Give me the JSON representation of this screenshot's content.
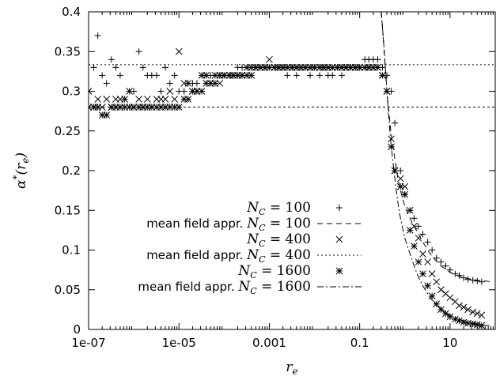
{
  "chart_data": {
    "type": "scatter",
    "title": "",
    "xlabel": "r_e",
    "ylabel": "α*(r_e)",
    "x_scale": "log",
    "xlim": [
      1e-07,
      100
    ],
    "ylim": [
      0,
      0.4
    ],
    "grid": false,
    "legend_position": "lower-left",
    "x_tick_labels": [
      "1e-07",
      "1e-05",
      "0.001",
      "0.1",
      "10"
    ],
    "x_tick_values": [
      1e-07,
      1e-05,
      0.001,
      0.1,
      10
    ],
    "y_tick_labels": [
      "0",
      "0.05",
      "0.1",
      "0.15",
      "0.2",
      "0.25",
      "0.3",
      "0.35",
      "0.4"
    ],
    "y_tick_values": [
      0,
      0.05,
      0.1,
      0.15,
      0.2,
      0.25,
      0.3,
      0.35,
      0.4
    ],
    "series": [
      {
        "name": "N_C = 100",
        "marker": "plus",
        "x": [
          1.3e-07,
          1.6e-07,
          2e-07,
          2.5e-07,
          3.2e-07,
          4e-07,
          5e-07,
          6.3e-07,
          8e-07,
          1e-06,
          1.3e-06,
          1.6e-06,
          2e-06,
          2.5e-06,
          3.2e-06,
          4e-06,
          5e-06,
          6.3e-06,
          8e-06,
          1e-05,
          1.3e-05,
          1.6e-05,
          2e-05,
          2.5e-05,
          3.2e-05,
          4e-05,
          5e-05,
          6.3e-05,
          8e-05,
          0.0001,
          0.00013,
          0.00016,
          0.0002,
          0.00025,
          0.00032,
          0.0004,
          0.0005,
          0.00063,
          0.0008,
          0.001,
          0.0013,
          0.0016,
          0.002,
          0.0025,
          0.0032,
          0.004,
          0.005,
          0.0063,
          0.008,
          0.01,
          0.013,
          0.016,
          0.02,
          0.025,
          0.032,
          0.04,
          0.05,
          0.063,
          0.08,
          0.1,
          0.13,
          0.16,
          0.2,
          0.25,
          0.32,
          0.4,
          0.5,
          0.6,
          0.8,
          1.0,
          1.3,
          1.6,
          2.0,
          2.5,
          3.2,
          4.0,
          5.0,
          6.3,
          8.0,
          10,
          13,
          16,
          20,
          25,
          32,
          40,
          50
        ],
        "y": [
          0.33,
          0.37,
          0.32,
          0.31,
          0.34,
          0.33,
          0.32,
          0.29,
          0.3,
          0.3,
          0.35,
          0.33,
          0.32,
          0.32,
          0.32,
          0.3,
          0.33,
          0.31,
          0.32,
          0.3,
          0.3,
          0.31,
          0.31,
          0.31,
          0.32,
          0.32,
          0.32,
          0.32,
          0.32,
          0.32,
          0.32,
          0.32,
          0.33,
          0.33,
          0.33,
          0.33,
          0.33,
          0.33,
          0.33,
          0.33,
          0.33,
          0.33,
          0.33,
          0.32,
          0.33,
          0.32,
          0.33,
          0.33,
          0.32,
          0.33,
          0.32,
          0.33,
          0.32,
          0.32,
          0.33,
          0.32,
          0.33,
          0.33,
          0.33,
          0.33,
          0.34,
          0.34,
          0.34,
          0.34,
          0.33,
          0.32,
          0.3,
          0.26,
          0.2,
          0.17,
          0.15,
          0.14,
          0.13,
          0.12,
          0.11,
          0.1,
          0.09,
          0.085,
          0.08,
          0.075,
          0.07,
          0.068,
          0.065,
          0.063,
          0.062,
          0.061,
          0.06
        ]
      },
      {
        "name": "mean field appr. N_C = 100",
        "line": "dashed",
        "x": [
          0.3,
          0.33,
          0.36,
          0.4,
          0.45,
          0.5,
          0.6,
          0.7,
          0.8,
          1.0,
          1.3,
          1.6,
          2.0,
          2.5,
          3.2,
          4.0,
          5.0,
          6.3,
          8.0,
          10,
          13,
          16,
          20,
          25,
          32,
          40,
          50,
          63,
          80
        ],
        "y": [
          0.4,
          0.37,
          0.34,
          0.3,
          0.27,
          0.245,
          0.215,
          0.19,
          0.175,
          0.155,
          0.14,
          0.13,
          0.12,
          0.11,
          0.1,
          0.092,
          0.086,
          0.08,
          0.076,
          0.072,
          0.069,
          0.067,
          0.065,
          0.064,
          0.063,
          0.062,
          0.061,
          0.061,
          0.06
        ]
      },
      {
        "name": "N_C = 400",
        "marker": "cross",
        "x": [
          1e-07,
          1.3e-07,
          1.6e-07,
          2e-07,
          2.5e-07,
          3.2e-07,
          4e-07,
          5e-07,
          6.3e-07,
          8e-07,
          1e-06,
          1.3e-06,
          1.6e-06,
          2e-06,
          2.5e-06,
          3.2e-06,
          4e-06,
          5e-06,
          6.3e-06,
          8e-06,
          1e-05,
          1.3e-05,
          1.6e-05,
          2e-05,
          2.5e-05,
          3.2e-05,
          4e-05,
          5e-05,
          6.3e-05,
          8e-05,
          0.0001,
          0.00013,
          0.00016,
          0.0002,
          0.00025,
          0.00032,
          0.0004,
          0.0005,
          0.00063,
          0.0008,
          0.001,
          0.0013,
          0.0016,
          0.002,
          0.0025,
          0.0032,
          0.004,
          0.005,
          0.0063,
          0.008,
          0.01,
          0.013,
          0.016,
          0.02,
          0.025,
          0.032,
          0.04,
          0.05,
          0.063,
          0.08,
          0.1,
          0.13,
          0.16,
          0.2,
          0.25,
          0.32,
          0.4,
          0.5,
          0.6,
          0.8,
          1.0,
          1.3,
          1.6,
          2.0,
          2.5,
          3.2,
          4.0,
          5.0,
          6.3,
          8.0,
          10,
          13,
          16,
          20,
          25,
          32,
          40,
          50
        ],
        "y": [
          0.3,
          0.28,
          0.29,
          0.28,
          0.29,
          0.28,
          0.29,
          0.29,
          0.29,
          0.3,
          0.28,
          0.29,
          0.28,
          0.29,
          0.28,
          0.29,
          0.29,
          0.29,
          0.3,
          0.29,
          0.35,
          0.31,
          0.31,
          0.3,
          0.3,
          0.32,
          0.32,
          0.31,
          0.32,
          0.31,
          0.32,
          0.32,
          0.32,
          0.32,
          0.32,
          0.33,
          0.33,
          0.33,
          0.33,
          0.33,
          0.34,
          0.33,
          0.33,
          0.33,
          0.33,
          0.33,
          0.33,
          0.33,
          0.33,
          0.33,
          0.33,
          0.33,
          0.33,
          0.33,
          0.33,
          0.33,
          0.33,
          0.33,
          0.33,
          0.33,
          0.33,
          0.33,
          0.33,
          0.33,
          0.33,
          0.32,
          0.3,
          0.24,
          0.2,
          0.19,
          0.18,
          0.15,
          0.13,
          0.115,
          0.095,
          0.085,
          0.07,
          0.06,
          0.05,
          0.045,
          0.04,
          0.035,
          0.03,
          0.028,
          0.025,
          0.022,
          0.02,
          0.018
        ]
      },
      {
        "name": "mean field appr. N_C = 400",
        "line": "dotted",
        "x": [
          1e-07,
          0.2
        ],
        "y": [
          0.3335,
          0.3335
        ],
        "x2": [
          0.2,
          100
        ],
        "y2": [
          0.3335,
          0.3335
        ]
      },
      {
        "name": "N_C = 1600",
        "marker": "star",
        "x": [
          1e-07,
          1.3e-07,
          1.6e-07,
          2e-07,
          2.5e-07,
          3.2e-07,
          4e-07,
          5e-07,
          6.3e-07,
          8e-07,
          1e-06,
          1.3e-06,
          1.6e-06,
          2e-06,
          2.5e-06,
          3.2e-06,
          4e-06,
          5e-06,
          6.3e-06,
          8e-06,
          1e-05,
          1.3e-05,
          1.6e-05,
          2e-05,
          2.5e-05,
          3.2e-05,
          4e-05,
          5e-05,
          6.3e-05,
          8e-05,
          0.0001,
          0.00013,
          0.00016,
          0.0002,
          0.00025,
          0.00032,
          0.0004,
          0.0005,
          0.00063,
          0.0008,
          0.001,
          0.0013,
          0.0016,
          0.002,
          0.0025,
          0.0032,
          0.004,
          0.005,
          0.0063,
          0.008,
          0.01,
          0.013,
          0.016,
          0.02,
          0.025,
          0.032,
          0.04,
          0.05,
          0.063,
          0.08,
          0.1,
          0.13,
          0.16,
          0.2,
          0.25,
          0.32,
          0.4,
          0.5,
          0.6,
          0.8,
          1.0,
          1.3,
          1.6,
          2.0,
          2.5,
          3.2,
          4.0,
          5.0,
          6.3,
          8.0,
          10,
          13,
          16,
          20,
          25,
          32,
          40,
          50
        ],
        "y": [
          0.28,
          0.28,
          0.28,
          0.27,
          0.27,
          0.28,
          0.28,
          0.28,
          0.28,
          0.28,
          0.28,
          0.28,
          0.28,
          0.28,
          0.28,
          0.28,
          0.28,
          0.28,
          0.28,
          0.28,
          0.28,
          0.29,
          0.29,
          0.3,
          0.3,
          0.3,
          0.31,
          0.31,
          0.31,
          0.32,
          0.32,
          0.32,
          0.32,
          0.32,
          0.32,
          0.32,
          0.32,
          0.33,
          0.33,
          0.33,
          0.33,
          0.33,
          0.33,
          0.33,
          0.33,
          0.33,
          0.33,
          0.33,
          0.33,
          0.33,
          0.33,
          0.33,
          0.33,
          0.33,
          0.33,
          0.33,
          0.33,
          0.33,
          0.33,
          0.33,
          0.33,
          0.33,
          0.33,
          0.33,
          0.33,
          0.32,
          0.3,
          0.23,
          0.2,
          0.18,
          0.17,
          0.125,
          0.105,
          0.085,
          0.07,
          0.055,
          0.042,
          0.032,
          0.025,
          0.02,
          0.016,
          0.013,
          0.011,
          0.009,
          0.008,
          0.007,
          0.006,
          0.005
        ]
      },
      {
        "name": "mean field appr. N_C = 1600",
        "line": "dashdot",
        "x": [
          0.3,
          0.33,
          0.36,
          0.4,
          0.45,
          0.5,
          0.6,
          0.7,
          0.8,
          1.0,
          1.3,
          1.6,
          2.0,
          2.5,
          3.2,
          4.0,
          5.0,
          6.3,
          8.0,
          10,
          13,
          16,
          20,
          25,
          32,
          40,
          50,
          63,
          80
        ],
        "y": [
          0.4,
          0.37,
          0.34,
          0.3,
          0.26,
          0.23,
          0.19,
          0.16,
          0.14,
          0.115,
          0.095,
          0.08,
          0.066,
          0.055,
          0.045,
          0.037,
          0.031,
          0.026,
          0.022,
          0.018,
          0.015,
          0.013,
          0.011,
          0.009,
          0.008,
          0.007,
          0.006,
          0.005,
          0.005
        ]
      },
      {
        "name": "",
        "line": "dashed-fine",
        "x": [
          1e-07,
          100
        ],
        "y": [
          0.28,
          0.28
        ]
      }
    ]
  },
  "legend": {
    "entries": [
      {
        "label_prefix": "",
        "math": "N",
        "sub": "C",
        "rest": " = 100"
      },
      {
        "label_prefix": "mean field appr. ",
        "math": "N",
        "sub": "C",
        "rest": " = 100"
      },
      {
        "label_prefix": "",
        "math": "N",
        "sub": "C",
        "rest": " = 400"
      },
      {
        "label_prefix": "mean field appr. ",
        "math": "N",
        "sub": "C",
        "rest": " = 400"
      },
      {
        "label_prefix": "",
        "math": "N",
        "sub": "C",
        "rest": " = 1600"
      },
      {
        "label_prefix": "mean field appr. ",
        "math": "N",
        "sub": "C",
        "rest": " = 1600"
      }
    ]
  },
  "axes": {
    "xlabel_main": "r",
    "xlabel_sub": "e",
    "ylabel_main": "α",
    "ylabel_sup": "*",
    "ylabel_open": "(r",
    "ylabel_sub": "e",
    "ylabel_close": ")"
  }
}
